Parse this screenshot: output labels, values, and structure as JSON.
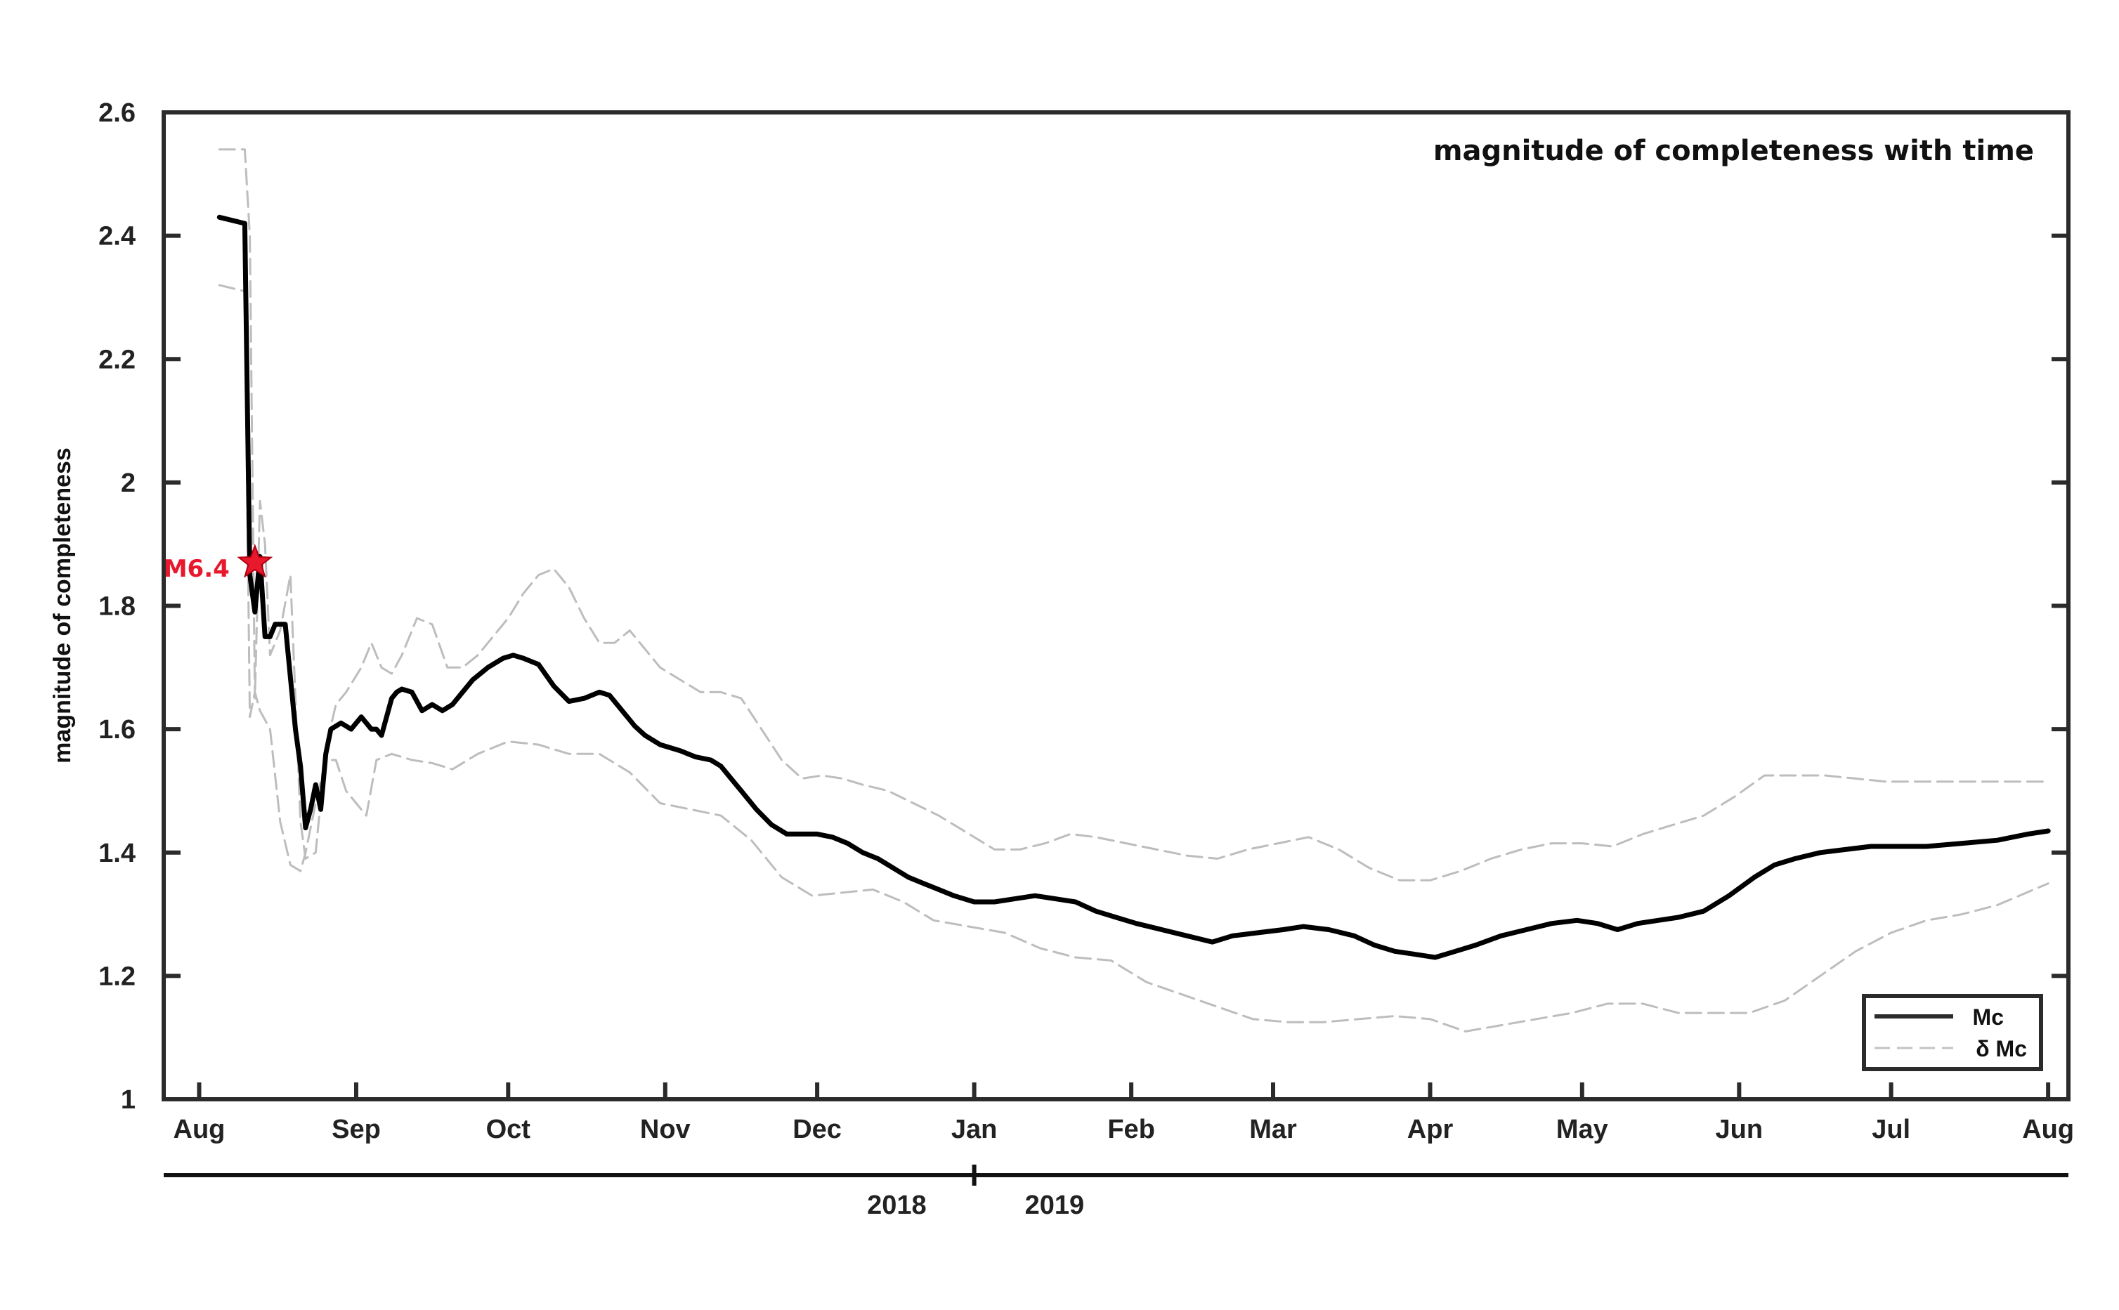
{
  "chart_data": {
    "type": "line",
    "title": "magnitude of completeness with time",
    "xlabel": "",
    "ylabel": "magnitude of completeness",
    "ylim": [
      1,
      2.6
    ],
    "yticks": [
      1,
      1.2,
      1.4,
      1.6,
      1.8,
      2,
      2.2,
      2.4,
      2.6
    ],
    "ytick_labels": [
      "1",
      "1.2",
      "1.4",
      "1.6",
      "1.8",
      "2",
      "2.2",
      "2.4",
      "2.6"
    ],
    "xlim": [
      "2018-07-25",
      "2019-08-05"
    ],
    "xticks": [
      {
        "date": "2018-08-01",
        "label": "Aug"
      },
      {
        "date": "2018-09-01",
        "label": "Sep"
      },
      {
        "date": "2018-10-01",
        "label": "Oct"
      },
      {
        "date": "2018-11-01",
        "label": "Nov"
      },
      {
        "date": "2018-12-01",
        "label": "Dec"
      },
      {
        "date": "2019-01-01",
        "label": "Jan"
      },
      {
        "date": "2019-02-01",
        "label": "Feb"
      },
      {
        "date": "2019-03-01",
        "label": "Mar"
      },
      {
        "date": "2019-04-01",
        "label": "Apr"
      },
      {
        "date": "2019-05-01",
        "label": "May"
      },
      {
        "date": "2019-06-01",
        "label": "Jun"
      },
      {
        "date": "2019-07-01",
        "label": "Jul"
      },
      {
        "date": "2019-08-01",
        "label": "Aug"
      }
    ],
    "year_axis": {
      "divider_date": "2019-01-01",
      "left_label": "2018",
      "right_label": "2019"
    },
    "grid": false,
    "legend_position": "bottom-right",
    "series": [
      {
        "name": "Mc",
        "style": "solid",
        "color": "#000000",
        "x": [
          "2018-08-05",
          "2018-08-10",
          "2018-08-11",
          "2018-08-12",
          "2018-08-13",
          "2018-08-14",
          "2018-08-15",
          "2018-08-16",
          "2018-08-18",
          "2018-08-20",
          "2018-08-21",
          "2018-08-22",
          "2018-08-23",
          "2018-08-24",
          "2018-08-25",
          "2018-08-26",
          "2018-08-27",
          "2018-08-29",
          "2018-08-31",
          "2018-09-02",
          "2018-09-04",
          "2018-09-05",
          "2018-09-06",
          "2018-09-08",
          "2018-09-09",
          "2018-09-10",
          "2018-09-12",
          "2018-09-14",
          "2018-09-16",
          "2018-09-18",
          "2018-09-20",
          "2018-09-22",
          "2018-09-24",
          "2018-09-27",
          "2018-09-30",
          "2018-10-02",
          "2018-10-04",
          "2018-10-07",
          "2018-10-10",
          "2018-10-13",
          "2018-10-16",
          "2018-10-19",
          "2018-10-21",
          "2018-10-23",
          "2018-10-26",
          "2018-10-28",
          "2018-10-31",
          "2018-11-04",
          "2018-11-07",
          "2018-11-10",
          "2018-11-12",
          "2018-11-14",
          "2018-11-16",
          "2018-11-19",
          "2018-11-22",
          "2018-11-25",
          "2018-11-28",
          "2018-12-01",
          "2018-12-04",
          "2018-12-07",
          "2018-12-10",
          "2018-12-13",
          "2018-12-16",
          "2018-12-19",
          "2018-12-22",
          "2018-12-25",
          "2018-12-28",
          "2019-01-01",
          "2019-01-05",
          "2019-01-09",
          "2019-01-13",
          "2019-01-17",
          "2019-01-21",
          "2019-01-25",
          "2019-01-29",
          "2019-02-02",
          "2019-02-07",
          "2019-02-12",
          "2019-02-17",
          "2019-02-21",
          "2019-02-26",
          "2019-03-03",
          "2019-03-07",
          "2019-03-12",
          "2019-03-17",
          "2019-03-21",
          "2019-03-25",
          "2019-03-29",
          "2019-04-02",
          "2019-04-06",
          "2019-04-10",
          "2019-04-15",
          "2019-04-20",
          "2019-04-25",
          "2019-04-30",
          "2019-05-04",
          "2019-05-08",
          "2019-05-12",
          "2019-05-16",
          "2019-05-20",
          "2019-05-25",
          "2019-05-30",
          "2019-06-04",
          "2019-06-08",
          "2019-06-12",
          "2019-06-17",
          "2019-06-22",
          "2019-06-27",
          "2019-07-02",
          "2019-07-08",
          "2019-07-15",
          "2019-07-22",
          "2019-07-28",
          "2019-08-01"
        ],
        "values": [
          2.43,
          2.42,
          1.85,
          1.79,
          1.88,
          1.75,
          1.75,
          1.77,
          1.77,
          1.6,
          1.54,
          1.44,
          1.47,
          1.51,
          1.47,
          1.56,
          1.6,
          1.61,
          1.6,
          1.62,
          1.6,
          1.6,
          1.59,
          1.65,
          1.66,
          1.665,
          1.66,
          1.63,
          1.64,
          1.63,
          1.64,
          1.66,
          1.68,
          1.7,
          1.715,
          1.72,
          1.715,
          1.705,
          1.67,
          1.645,
          1.65,
          1.66,
          1.655,
          1.635,
          1.605,
          1.59,
          1.575,
          1.565,
          1.555,
          1.55,
          1.54,
          1.52,
          1.5,
          1.47,
          1.445,
          1.43,
          1.43,
          1.43,
          1.425,
          1.415,
          1.4,
          1.39,
          1.375,
          1.36,
          1.35,
          1.34,
          1.33,
          1.32,
          1.32,
          1.325,
          1.33,
          1.325,
          1.32,
          1.305,
          1.295,
          1.285,
          1.275,
          1.265,
          1.255,
          1.265,
          1.27,
          1.275,
          1.28,
          1.275,
          1.265,
          1.25,
          1.24,
          1.235,
          1.23,
          1.24,
          1.25,
          1.265,
          1.275,
          1.285,
          1.29,
          1.285,
          1.275,
          1.285,
          1.29,
          1.295,
          1.305,
          1.33,
          1.36,
          1.38,
          1.39,
          1.4,
          1.405,
          1.41,
          1.41,
          1.41,
          1.415,
          1.42,
          1.43,
          1.435
        ]
      },
      {
        "name": "δ Mc",
        "style": "dashed",
        "color": "#bdbdbd",
        "x": [
          "2018-08-05",
          "2018-08-10",
          "2018-08-11",
          "2018-08-12",
          "2018-08-13",
          "2018-08-14",
          "2018-08-15",
          "2018-08-17",
          "2018-08-19",
          "2018-08-21",
          "2018-08-22",
          "2018-08-24",
          "2018-08-26",
          "2018-08-28",
          "2018-08-30",
          "2018-09-02",
          "2018-09-04",
          "2018-09-06",
          "2018-09-08",
          "2018-09-10",
          "2018-09-13",
          "2018-09-16",
          "2018-09-19",
          "2018-09-22",
          "2018-09-25",
          "2018-09-28",
          "2018-10-01",
          "2018-10-04",
          "2018-10-07",
          "2018-10-10",
          "2018-10-13",
          "2018-10-16",
          "2018-10-19",
          "2018-10-22",
          "2018-10-25",
          "2018-10-28",
          "2018-10-31",
          "2018-11-04",
          "2018-11-08",
          "2018-11-12",
          "2018-11-16",
          "2018-11-20",
          "2018-11-24",
          "2018-11-28",
          "2018-12-02",
          "2018-12-06",
          "2018-12-10",
          "2018-12-15",
          "2018-12-20",
          "2018-12-25",
          "2018-12-31",
          "2019-01-05",
          "2019-01-10",
          "2019-01-15",
          "2019-01-20",
          "2019-01-25",
          "2019-01-31",
          "2019-02-06",
          "2019-02-12",
          "2019-02-18",
          "2019-02-24",
          "2019-03-02",
          "2019-03-08",
          "2019-03-14",
          "2019-03-20",
          "2019-03-26",
          "2019-04-01",
          "2019-04-07",
          "2019-04-13",
          "2019-04-19",
          "2019-04-25",
          "2019-05-01",
          "2019-05-07",
          "2019-05-13",
          "2019-05-19",
          "2019-05-25",
          "2019-05-31",
          "2019-06-06",
          "2019-06-12",
          "2019-06-18",
          "2019-06-24",
          "2019-06-30",
          "2019-07-08",
          "2019-07-16",
          "2019-07-24",
          "2019-08-01"
        ],
        "values": [
          2.54,
          2.54,
          2.4,
          1.65,
          1.97,
          1.9,
          1.72,
          1.76,
          1.85,
          1.45,
          1.39,
          1.4,
          1.57,
          1.64,
          1.66,
          1.7,
          1.74,
          1.7,
          1.69,
          1.72,
          1.78,
          1.77,
          1.7,
          1.7,
          1.72,
          1.75,
          1.78,
          1.82,
          1.85,
          1.86,
          1.83,
          1.78,
          1.74,
          1.74,
          1.76,
          1.73,
          1.7,
          1.68,
          1.66,
          1.66,
          1.65,
          1.6,
          1.55,
          1.52,
          1.525,
          1.52,
          1.51,
          1.5,
          1.48,
          1.46,
          1.43,
          1.405,
          1.405,
          1.415,
          1.43,
          1.425,
          1.415,
          1.405,
          1.395,
          1.39,
          1.405,
          1.415,
          1.425,
          1.405,
          1.375,
          1.355,
          1.355,
          1.37,
          1.39,
          1.405,
          1.415,
          1.415,
          1.41,
          1.43,
          1.445,
          1.46,
          1.49,
          1.525,
          1.525,
          1.525,
          1.52,
          1.515,
          1.515,
          1.515,
          1.515,
          1.515
        ]
      },
      {
        "name": "δ Mc",
        "style": "dashed",
        "color": "#bdbdbd",
        "x": [
          "2018-08-05",
          "2018-08-10",
          "2018-08-11",
          "2018-08-12",
          "2018-08-13",
          "2018-08-15",
          "2018-08-17",
          "2018-08-19",
          "2018-08-21",
          "2018-08-22",
          "2018-08-24",
          "2018-08-26",
          "2018-08-28",
          "2018-08-30",
          "2018-09-01",
          "2018-09-03",
          "2018-09-05",
          "2018-09-08",
          "2018-09-12",
          "2018-09-16",
          "2018-09-20",
          "2018-09-25",
          "2018-10-01",
          "2018-10-07",
          "2018-10-13",
          "2018-10-19",
          "2018-10-25",
          "2018-10-31",
          "2018-11-06",
          "2018-11-12",
          "2018-11-18",
          "2018-11-24",
          "2018-11-30",
          "2018-12-06",
          "2018-12-12",
          "2018-12-18",
          "2018-12-24",
          "2018-12-31",
          "2019-01-07",
          "2019-01-14",
          "2019-01-21",
          "2019-01-28",
          "2019-02-04",
          "2019-02-11",
          "2019-02-18",
          "2019-02-25",
          "2019-03-04",
          "2019-03-11",
          "2019-03-18",
          "2019-03-25",
          "2019-04-01",
          "2019-04-08",
          "2019-04-15",
          "2019-04-22",
          "2019-04-29",
          "2019-05-06",
          "2019-05-13",
          "2019-05-20",
          "2019-05-27",
          "2019-06-03",
          "2019-06-10",
          "2019-06-17",
          "2019-06-24",
          "2019-07-01",
          "2019-07-08",
          "2019-07-15",
          "2019-07-22",
          "2019-08-01"
        ],
        "values": [
          2.32,
          2.31,
          1.62,
          1.66,
          1.63,
          1.6,
          1.45,
          1.38,
          1.37,
          1.4,
          1.48,
          1.55,
          1.55,
          1.5,
          1.48,
          1.46,
          1.55,
          1.56,
          1.55,
          1.545,
          1.535,
          1.56,
          1.58,
          1.575,
          1.56,
          1.56,
          1.53,
          1.48,
          1.47,
          1.46,
          1.42,
          1.36,
          1.33,
          1.335,
          1.34,
          1.32,
          1.29,
          1.28,
          1.27,
          1.245,
          1.23,
          1.225,
          1.19,
          1.17,
          1.15,
          1.13,
          1.125,
          1.125,
          1.13,
          1.135,
          1.13,
          1.11,
          1.12,
          1.13,
          1.14,
          1.155,
          1.155,
          1.14,
          1.14,
          1.14,
          1.16,
          1.2,
          1.24,
          1.27,
          1.29,
          1.3,
          1.315,
          1.35
        ]
      }
    ],
    "legend": [
      {
        "label": "Mc",
        "style": "solid"
      },
      {
        "label": "δ Mc",
        "style": "dashed"
      }
    ],
    "annotations": [
      {
        "text": "M6.4",
        "marker": "star",
        "x": "2018-08-12",
        "y": 1.87,
        "color": "#e8192c"
      }
    ]
  }
}
